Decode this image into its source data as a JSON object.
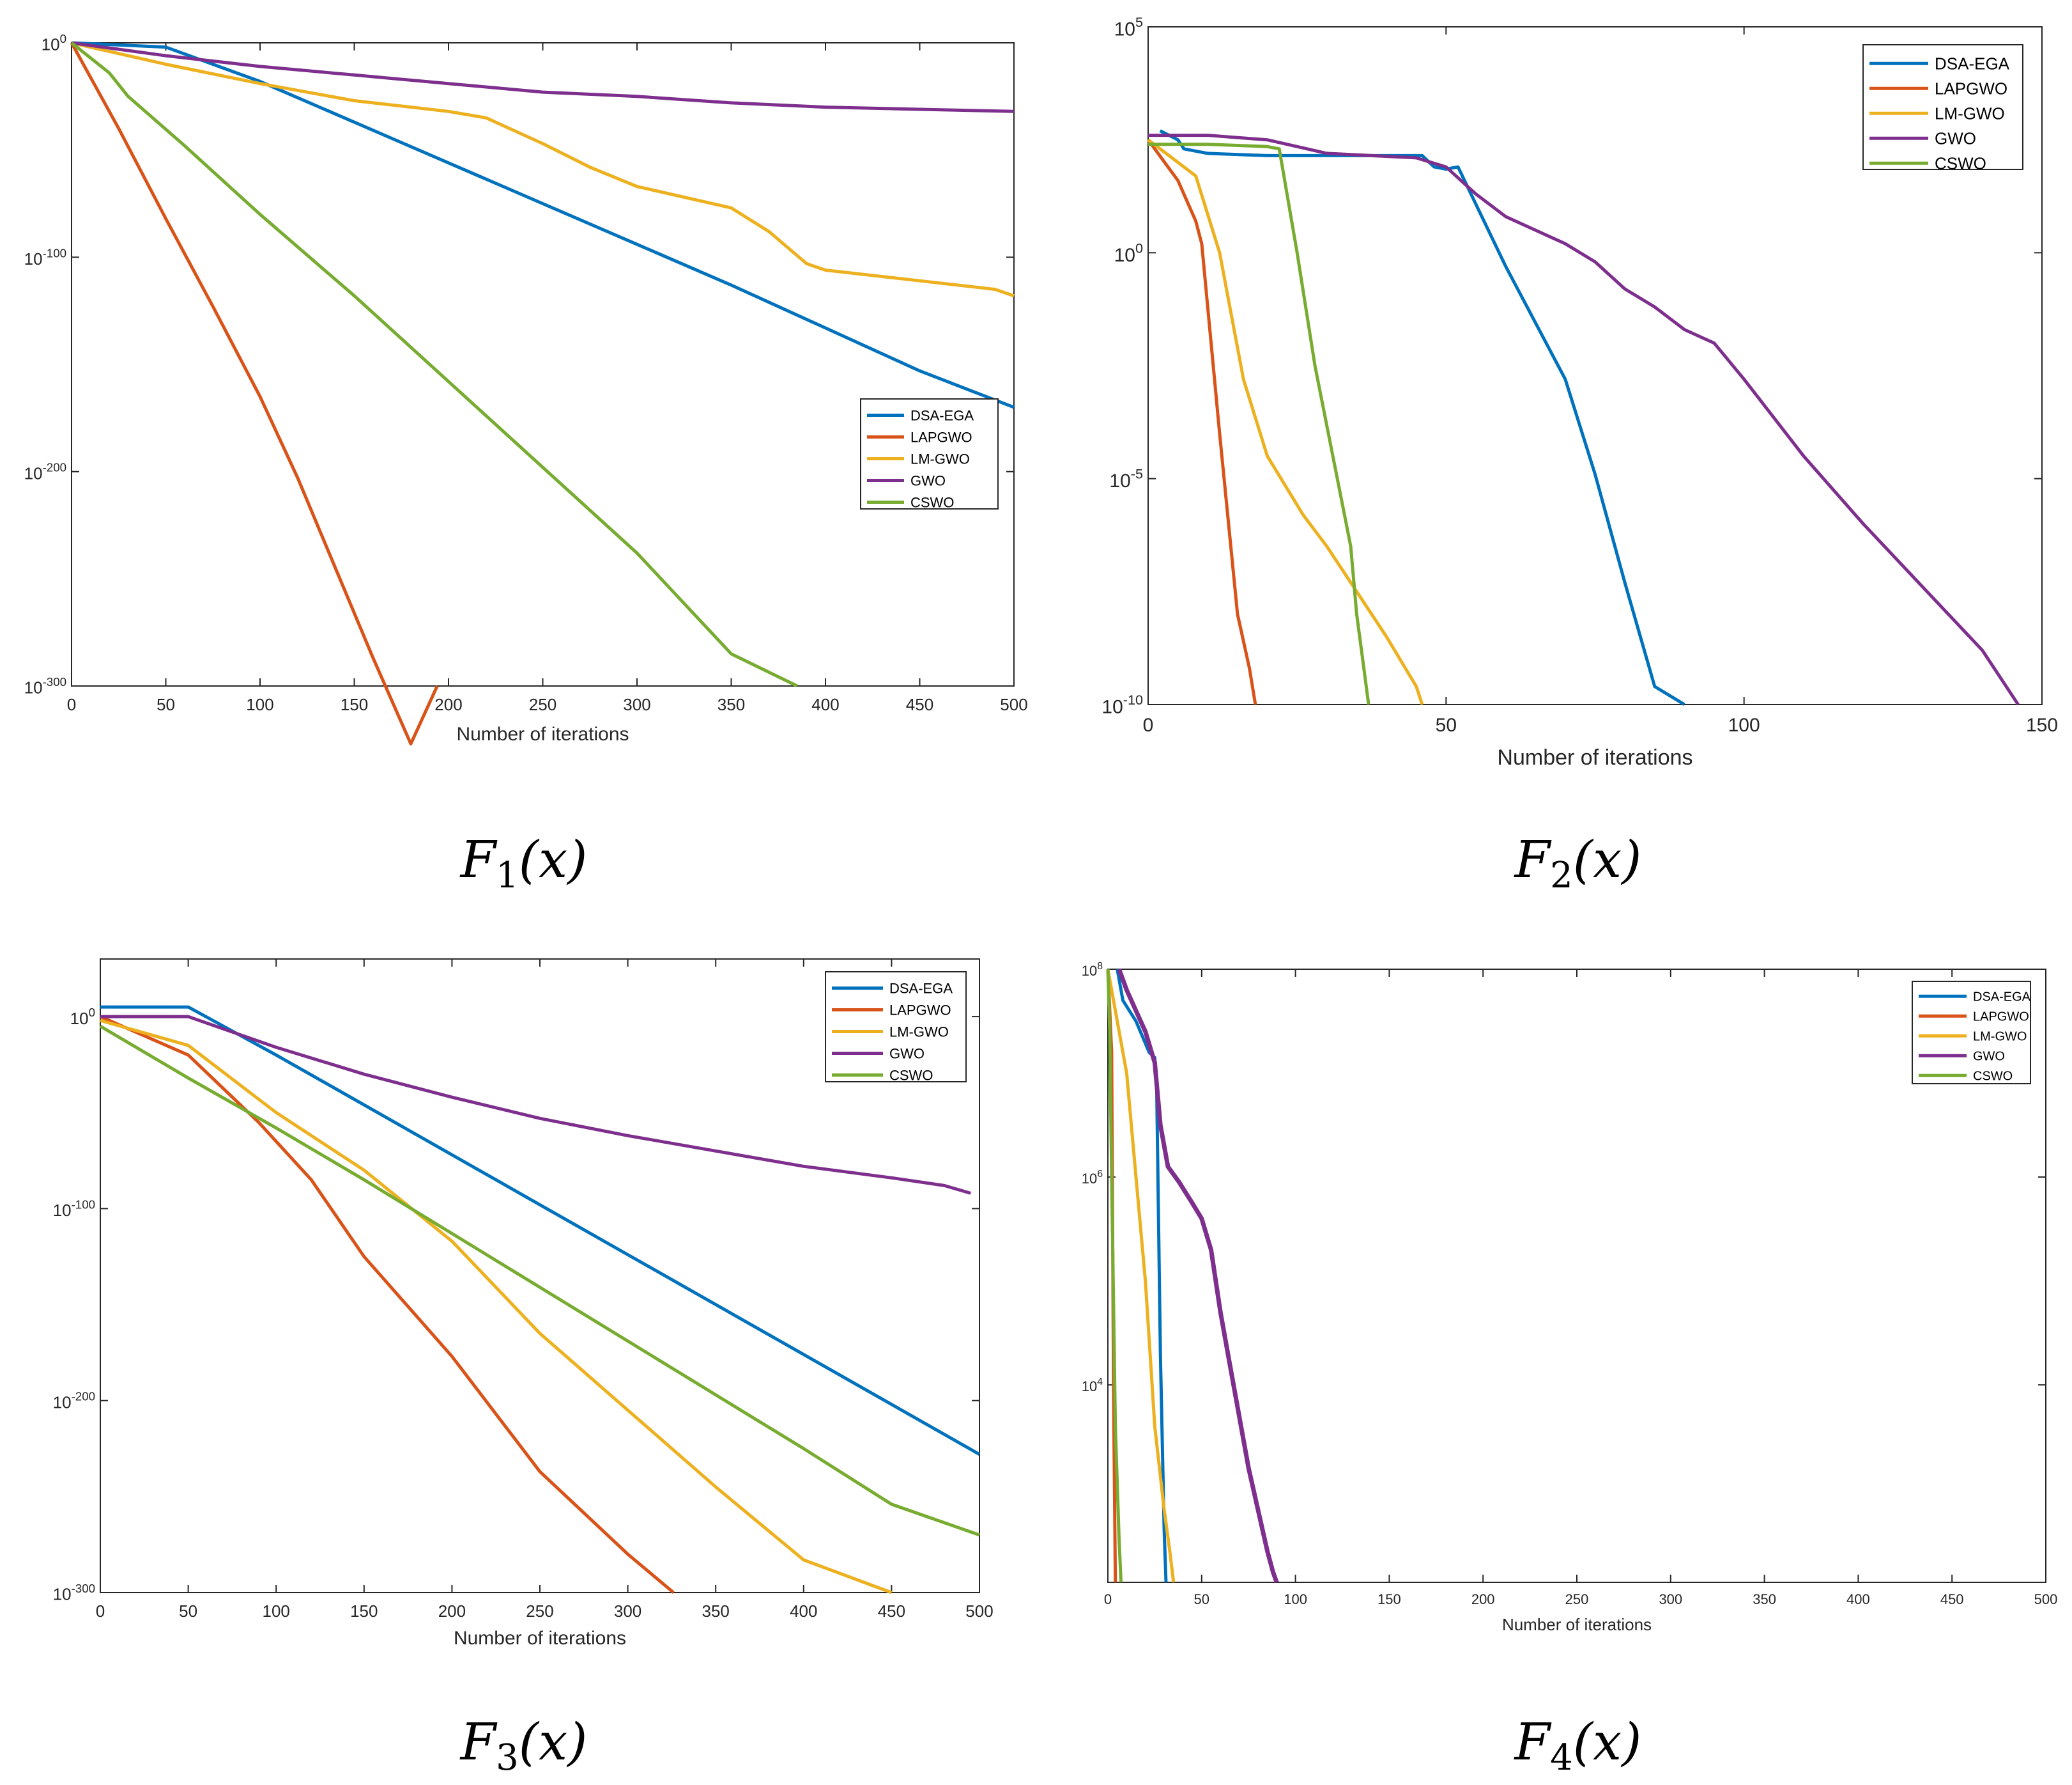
{
  "colors": {
    "DSA-EGA": "#0072BD",
    "LAPGWO": "#D95319",
    "LM-GWO": "#EDB120",
    "GWO": "#7E2F8E",
    "CSWO": "#77AC30",
    "axis": "#262626",
    "background": "#ffffff"
  },
  "chart_data": [
    {
      "id": "F1",
      "type": "line",
      "caption": {
        "base": "F",
        "sub": "1",
        "rest": "(x)"
      },
      "xlabel": "Number of iterations",
      "ylabel": "",
      "yscale": "log",
      "xlim": [
        0,
        500
      ],
      "ylim_exp": [
        -300,
        0
      ],
      "xticks": [
        0,
        50,
        100,
        150,
        200,
        250,
        300,
        350,
        400,
        450,
        500
      ],
      "xtick_labels": [
        "0",
        "50",
        "100",
        "150",
        "200",
        "250",
        "300",
        "350",
        "400",
        "450",
        "500"
      ],
      "ytick_exps": [
        0,
        -100,
        -200,
        -300
      ],
      "legend_position": "right-middle",
      "grid": false,
      "series": [
        {
          "name": "DSA-EGA",
          "x": [
            0,
            50,
            100,
            150,
            200,
            250,
            300,
            350,
            400,
            450,
            500
          ],
          "y_exp": [
            0,
            -2,
            -18,
            -37,
            -56,
            -75,
            -94,
            -113,
            -133,
            -153,
            -170
          ]
        },
        {
          "name": "LAPGWO",
          "x": [
            0,
            25,
            50,
            75,
            100,
            120,
            140,
            160,
            180,
            194
          ],
          "y_exp": [
            0,
            -40,
            -82,
            -123,
            -165,
            -203,
            -245,
            -287,
            -327,
            -300
          ]
        },
        {
          "name": "LM-GWO",
          "x": [
            0,
            50,
            100,
            150,
            200,
            220,
            250,
            275,
            300,
            325,
            350,
            370,
            390,
            400,
            450,
            490,
            500
          ],
          "y_exp": [
            0,
            -10,
            -19,
            -27,
            -32,
            -35,
            -47,
            -58,
            -67,
            -72,
            -77,
            -88,
            -103,
            -106,
            -111,
            -115,
            -118
          ]
        },
        {
          "name": "GWO",
          "x": [
            0,
            50,
            100,
            150,
            200,
            250,
            300,
            350,
            400,
            450,
            500
          ],
          "y_exp": [
            0,
            -6,
            -11,
            -15,
            -19,
            -23,
            -25,
            -28,
            -30,
            -31,
            -32
          ]
        },
        {
          "name": "CSWO",
          "x": [
            0,
            10,
            20,
            30,
            60,
            100,
            150,
            200,
            250,
            300,
            350,
            385
          ],
          "y_exp": [
            0,
            -7,
            -14,
            -25,
            -48,
            -80,
            -118,
            -158,
            -198,
            -238,
            -285,
            -300
          ]
        }
      ]
    },
    {
      "id": "F2",
      "type": "line",
      "caption": {
        "base": "F",
        "sub": "2",
        "rest": "(x)"
      },
      "xlabel": "Number of iterations",
      "ylabel": "",
      "yscale": "log",
      "xlim": [
        0,
        150
      ],
      "ylim_exp": [
        -10,
        5
      ],
      "xticks": [
        0,
        50,
        100,
        150
      ],
      "xtick_labels": [
        "0",
        "50",
        "100",
        "150"
      ],
      "ytick_exps": [
        5,
        0,
        -5,
        -10
      ],
      "ytick_labels": [
        "10",
        "10",
        "10",
        "10"
      ],
      "ytick_sup": [
        "5",
        "0",
        "-5",
        "-10"
      ],
      "legend_position": "top-right",
      "grid": false,
      "series": [
        {
          "name": "DSA-EGA",
          "x": [
            2,
            5,
            6,
            10,
            20,
            30,
            40,
            46,
            48,
            50,
            52,
            60,
            70,
            75,
            80,
            85,
            90
          ],
          "y_exp": [
            2.7,
            2.5,
            2.3,
            2.2,
            2.15,
            2.15,
            2.15,
            2.15,
            1.9,
            1.85,
            1.9,
            -0.3,
            -2.8,
            -4.9,
            -7.3,
            -9.6,
            -10
          ]
        },
        {
          "name": "LAPGWO",
          "x": [
            0,
            5,
            8,
            9,
            12,
            15,
            17,
            18
          ],
          "y_exp": [
            2.5,
            1.6,
            0.7,
            0.2,
            -4.0,
            -8.0,
            -9.2,
            -10
          ]
        },
        {
          "name": "LM-GWO",
          "x": [
            0,
            4,
            8,
            12,
            16,
            20,
            26,
            30,
            35,
            40,
            45,
            46
          ],
          "y_exp": [
            2.5,
            2.1,
            1.7,
            0,
            -2.8,
            -4.5,
            -5.8,
            -6.5,
            -7.5,
            -8.5,
            -9.6,
            -10
          ]
        },
        {
          "name": "GWO",
          "x": [
            0,
            10,
            20,
            30,
            45,
            50,
            55,
            60,
            65,
            70,
            75,
            80,
            85,
            90,
            95,
            100,
            110,
            120,
            130,
            140,
            146
          ],
          "y_exp": [
            2.6,
            2.6,
            2.5,
            2.2,
            2.1,
            1.9,
            1.3,
            0.8,
            0.5,
            0.2,
            -0.2,
            -0.8,
            -1.2,
            -1.7,
            -2.0,
            -2.8,
            -4.5,
            -6.0,
            -7.4,
            -8.8,
            -10
          ]
        },
        {
          "name": "CSWO",
          "x": [
            0,
            10,
            20,
            22,
            25,
            28,
            31,
            34,
            35,
            36,
            37
          ],
          "y_exp": [
            2.4,
            2.4,
            2.35,
            2.3,
            0,
            -2.5,
            -4.5,
            -6.5,
            -8,
            -9,
            -10
          ]
        }
      ]
    },
    {
      "id": "F3",
      "type": "line",
      "caption": {
        "base": "F",
        "sub": "3",
        "rest": "(x)"
      },
      "xlabel": "Number of iterations",
      "ylabel": "",
      "yscale": "log",
      "xlim": [
        0,
        500
      ],
      "ylim_exp": [
        -300,
        30
      ],
      "xticks": [
        0,
        50,
        100,
        150,
        200,
        250,
        300,
        350,
        400,
        450,
        500
      ],
      "xtick_labels": [
        "0",
        "50",
        "100",
        "150",
        "200",
        "250",
        "300",
        "350",
        "400",
        "450",
        "500"
      ],
      "ytick_exps": [
        0,
        -100,
        -200,
        -300
      ],
      "legend_position": "top-right",
      "grid": false,
      "series": [
        {
          "name": "DSA-EGA",
          "x": [
            0,
            50,
            100,
            150,
            200,
            250,
            300,
            350,
            400,
            450,
            500
          ],
          "y_exp": [
            5,
            5,
            -20,
            -46,
            -72,
            -98,
            -124,
            -150,
            -176,
            -202,
            -228
          ]
        },
        {
          "name": "LAPGWO",
          "x": [
            0,
            50,
            90,
            120,
            150,
            200,
            250,
            300,
            326
          ],
          "y_exp": [
            0,
            -20,
            -55,
            -85,
            -125,
            -177,
            -237,
            -280,
            -300
          ]
        },
        {
          "name": "LM-GWO",
          "x": [
            0,
            50,
            100,
            150,
            200,
            250,
            300,
            350,
            400,
            450
          ],
          "y_exp": [
            -2,
            -15,
            -50,
            -80,
            -117,
            -165,
            -205,
            -245,
            -283,
            -300
          ]
        },
        {
          "name": "GWO",
          "x": [
            0,
            50,
            100,
            150,
            200,
            250,
            300,
            350,
            400,
            450,
            480,
            495
          ],
          "y_exp": [
            0,
            0,
            -16,
            -30,
            -42,
            -53,
            -62,
            -70,
            -78,
            -84,
            -88,
            -92
          ]
        },
        {
          "name": "CSWO",
          "x": [
            0,
            50,
            100,
            150,
            200,
            250,
            300,
            350,
            400,
            450,
            500
          ],
          "y_exp": [
            -5,
            -32,
            -58,
            -85,
            -113,
            -141,
            -169,
            -197,
            -225,
            -254,
            -270
          ]
        }
      ]
    },
    {
      "id": "F4",
      "type": "line",
      "caption": {
        "base": "F",
        "sub": "4",
        "rest": "(x)"
      },
      "xlabel": "Number of iterations",
      "ylabel": "",
      "yscale": "log",
      "xlim": [
        0,
        500
      ],
      "ylim_exp": [
        2.1,
        8
      ],
      "xticks": [
        0,
        50,
        100,
        150,
        200,
        250,
        300,
        350,
        400,
        450,
        500
      ],
      "xtick_labels": [
        "0",
        "50",
        "100",
        "150",
        "200",
        "250",
        "300",
        "350",
        "400",
        "450",
        "500"
      ],
      "ytick_exps": [
        8,
        6,
        4
      ],
      "ytick_labels": [
        "10",
        "10",
        "10"
      ],
      "ytick_sup": [
        "8",
        "6",
        "4"
      ],
      "legend_position": "top-right",
      "grid": false,
      "series": [
        {
          "name": "DSA-EGA",
          "x": [
            5,
            8,
            15,
            22,
            25,
            26,
            28,
            30,
            31
          ],
          "y_exp": [
            8,
            7.7,
            7.5,
            7.2,
            7.15,
            6.9,
            4.3,
            2.6,
            2.1
          ]
        },
        {
          "name": "LAPGWO",
          "x": [
            0,
            2,
            3,
            4
          ],
          "y_exp": [
            8,
            7.2,
            4.0,
            2.1
          ]
        },
        {
          "name": "LM-GWO",
          "x": [
            0,
            5,
            10,
            15,
            20,
            25,
            30,
            33,
            35
          ],
          "y_exp": [
            8,
            7.5,
            7.0,
            6.0,
            5.0,
            3.6,
            2.8,
            2.4,
            2.1
          ]
        },
        {
          "name": "GWO",
          "x": [
            6,
            10,
            15,
            20,
            25,
            28,
            32,
            38,
            45,
            50,
            55,
            60,
            65,
            70,
            75,
            80,
            85,
            88,
            90
          ],
          "y_exp": [
            8,
            7.8,
            7.6,
            7.4,
            7.1,
            6.5,
            6.1,
            5.95,
            5.75,
            5.6,
            5.3,
            4.7,
            4.2,
            3.7,
            3.2,
            2.8,
            2.4,
            2.2,
            2.1
          ]
        },
        {
          "name": "CSWO",
          "x": [
            0,
            1,
            2,
            3,
            4,
            6,
            7
          ],
          "y_exp": [
            8,
            7.4,
            6.0,
            4.8,
            3.6,
            2.5,
            2.1
          ]
        }
      ]
    }
  ]
}
